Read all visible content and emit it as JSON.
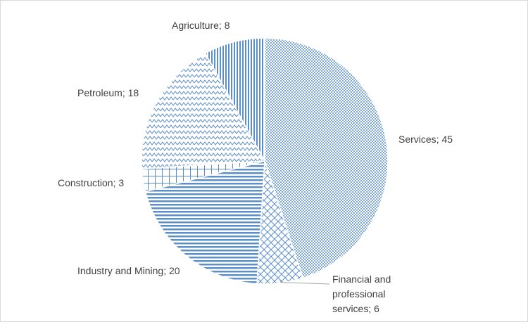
{
  "chart_data": {
    "type": "pie",
    "categories": [
      "Services",
      "Financial and professional services",
      "Industry and Mining",
      "Construction",
      "Petroleum",
      "Agriculture"
    ],
    "values": [
      45,
      6,
      20,
      3,
      18,
      8
    ],
    "label_separator": "; ",
    "color": "#5b8fc9"
  }
}
